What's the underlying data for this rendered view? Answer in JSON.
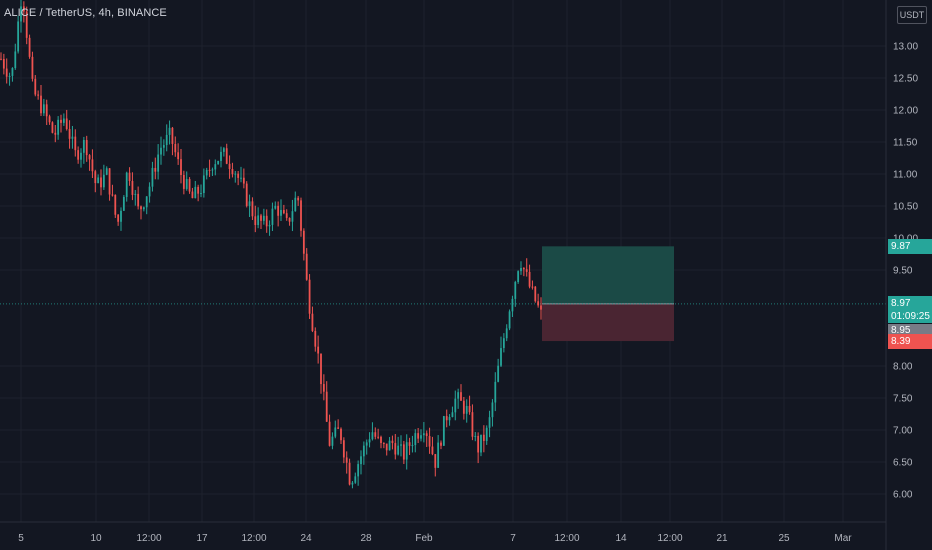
{
  "header": {
    "symbol_line": "ALICE / TetherUS, 4h, BINANCE"
  },
  "price_axis": {
    "unit": "USDT",
    "ticks": [
      "13.00",
      "12.50",
      "12.00",
      "11.50",
      "11.00",
      "10.50",
      "10.00",
      "9.50",
      "8.00",
      "7.50",
      "7.00",
      "6.50",
      "6.00"
    ],
    "tick_values": [
      13.0,
      12.5,
      12.0,
      11.5,
      11.0,
      10.5,
      10.0,
      9.5,
      8.0,
      7.5,
      7.0,
      6.5,
      6.0
    ]
  },
  "time_axis": {
    "labels": [
      "5",
      "10",
      "12:00",
      "17",
      "12:00",
      "24",
      "28",
      "Feb",
      "7",
      "12:00",
      "14",
      "12:00",
      "21",
      "25",
      "Mar"
    ]
  },
  "price_tags": {
    "target": "9.87",
    "last_price": "8.97",
    "countdown": "01:09:25",
    "bid": "8.95",
    "stop": "8.39"
  },
  "colors": {
    "background": "#131722",
    "up": "#26a69a",
    "down": "#ef5350",
    "target_zone": "#1b4a46",
    "stop_zone": "#4a2532",
    "last_price_line": "#26a69a",
    "bid_tag": "#787b86"
  },
  "chart_data": {
    "type": "candlestick",
    "symbol": "ALICE / TetherUS",
    "interval": "4h",
    "exchange": "BINANCE",
    "ylim": [
      5.6,
      14.2
    ],
    "close_path": [
      12.8,
      12.5,
      13.9,
      12.3,
      12.0,
      11.6,
      11.9,
      11.3,
      11.5,
      10.8,
      11.0,
      10.2,
      11.1,
      10.4,
      10.8,
      11.4,
      11.6,
      11.0,
      10.6,
      10.8,
      11.2,
      11.3,
      11.1,
      10.7,
      10.3,
      10.2,
      10.5,
      10.2,
      10.7,
      9.1,
      8.1,
      6.8,
      7.0,
      6.2,
      6.6,
      7.0,
      6.7,
      6.8,
      6.6,
      6.9,
      7.1,
      6.5,
      7.2,
      7.5,
      7.3,
      6.7,
      7.0,
      8.0,
      8.9,
      9.7,
      9.2,
      8.8
    ],
    "risk_reward": {
      "entry": 8.97,
      "target": 9.87,
      "stop": 8.39
    }
  }
}
